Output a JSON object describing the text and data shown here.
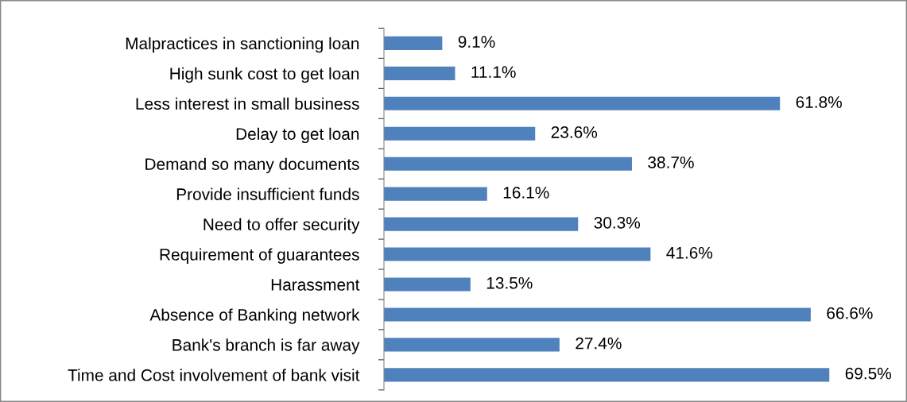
{
  "chart_data": {
    "type": "bar",
    "orientation": "horizontal",
    "categories": [
      "Malpractices in sanctioning loan",
      "High sunk cost to get loan",
      "Less interest in small business",
      "Delay to get loan",
      "Demand so many documents",
      "Provide insufficient funds",
      "Need to offer security",
      "Requirement of guarantees",
      "Harassment",
      "Absence of Banking network",
      "Bank's branch is far away",
      "Time and Cost involvement of bank visit"
    ],
    "values": [
      9.1,
      11.1,
      61.8,
      23.6,
      38.7,
      16.1,
      30.3,
      41.6,
      13.5,
      66.6,
      27.4,
      69.5
    ],
    "value_labels": [
      "9.1%",
      "11.1%",
      "61.8%",
      "23.6%",
      "38.7%",
      "16.1%",
      "30.3%",
      "41.6%",
      "13.5%",
      "66.6%",
      "27.4%",
      "69.5%"
    ],
    "color": "#4f81bd",
    "tick_labels": "y",
    "grid": false,
    "legend": false
  }
}
